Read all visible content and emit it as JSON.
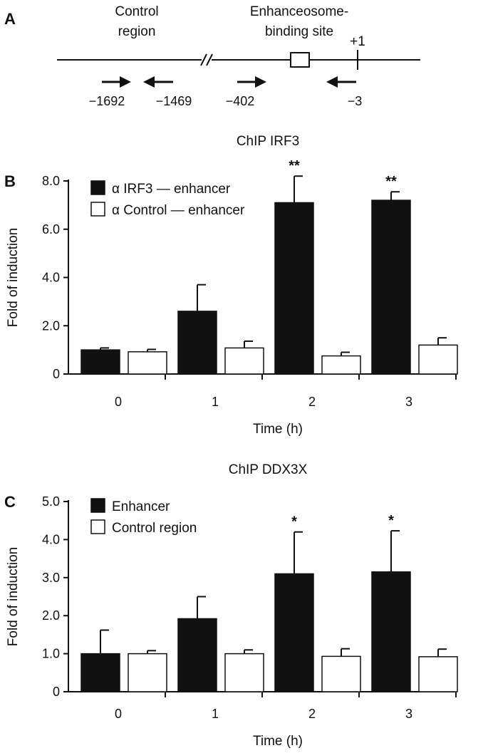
{
  "panel_a": {
    "letter": "A",
    "control_label_1": "Control",
    "control_label_2": "region",
    "enh_label_1": "Enhanceosome-",
    "enh_label_2": "binding site",
    "tss_label": "+1",
    "primers": [
      "−1692",
      "−1469",
      "−402",
      "−3"
    ]
  },
  "chart_data": [
    {
      "type": "bar",
      "panel": "B",
      "title": "ChIP IRF3",
      "xlabel": "Time (h)",
      "ylabel": "Fold of induction",
      "categories": [
        "0",
        "1",
        "2",
        "3"
      ],
      "ylim": [
        0,
        8
      ],
      "yticks": [
        0,
        2,
        4,
        6,
        8
      ],
      "ytick_labels": [
        "0",
        "2.0",
        "4.0",
        "6.0",
        "8.0"
      ],
      "legend_position": "top-left",
      "series": [
        {
          "name": "α IRF3 — enhancer",
          "color": "#111111",
          "values": [
            1.0,
            2.6,
            7.1,
            7.2
          ],
          "errors": [
            0.08,
            1.1,
            1.1,
            0.35
          ]
        },
        {
          "name": "α Control — enhancer",
          "color": "#ffffff",
          "values": [
            0.92,
            1.08,
            0.75,
            1.2
          ],
          "errors": [
            0.1,
            0.28,
            0.15,
            0.3
          ]
        }
      ],
      "annotations": [
        "",
        "",
        "**",
        "**"
      ]
    },
    {
      "type": "bar",
      "panel": "C",
      "title": "ChIP DDX3X",
      "xlabel": "Time (h)",
      "ylabel": "Fold of induction",
      "categories": [
        "0",
        "1",
        "2",
        "3"
      ],
      "ylim": [
        0,
        5
      ],
      "yticks": [
        0,
        1,
        2,
        3,
        4,
        5
      ],
      "ytick_labels": [
        "0",
        "1.0",
        "2.0",
        "3.0",
        "4.0",
        "5.0"
      ],
      "legend_position": "top-left",
      "series": [
        {
          "name": "Enhancer",
          "color": "#111111",
          "values": [
            1.0,
            1.92,
            3.1,
            3.15
          ],
          "errors": [
            0.62,
            0.58,
            1.1,
            1.08
          ]
        },
        {
          "name": "Control region",
          "color": "#ffffff",
          "values": [
            1.0,
            1.0,
            0.93,
            0.92
          ],
          "errors": [
            0.08,
            0.1,
            0.2,
            0.2
          ]
        }
      ],
      "annotations": [
        "",
        "",
        "*",
        "*"
      ]
    }
  ]
}
